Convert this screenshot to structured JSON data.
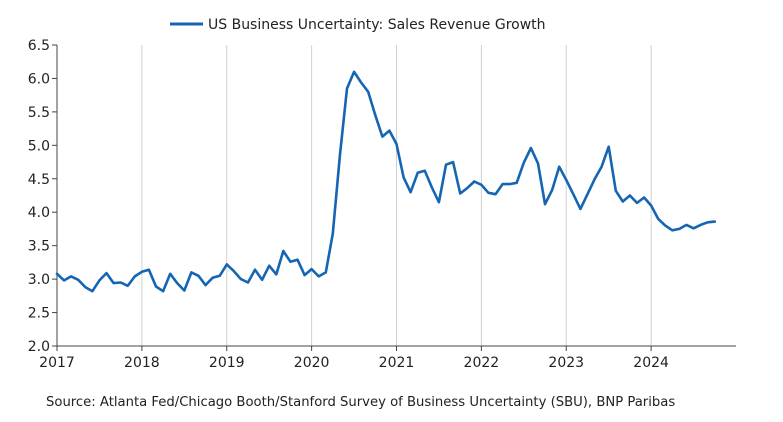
{
  "chart_data": {
    "type": "line",
    "title": "",
    "xlabel": "",
    "ylabel": "",
    "ylim": [
      2.0,
      6.5
    ],
    "yticks": [
      "2.0",
      "2.5",
      "3.0",
      "3.5",
      "4.0",
      "4.5",
      "5.0",
      "5.5",
      "6.0",
      "6.5"
    ],
    "xlim": [
      "2017-01",
      "2024-12"
    ],
    "xticks": [
      "2017",
      "2018",
      "2019",
      "2020",
      "2021",
      "2022",
      "2023",
      "2024"
    ],
    "grid": "vertical lines at year ticks",
    "legend_position": "top-center",
    "series": [
      {
        "name": "US Business Uncertainty: Sales Revenue Growth",
        "color": "#1565b3",
        "points": [
          [
            "2017-01",
            3.08
          ],
          [
            "2017-02",
            2.98
          ],
          [
            "2017-03",
            3.04
          ],
          [
            "2017-04",
            2.99
          ],
          [
            "2017-05",
            2.88
          ],
          [
            "2017-06",
            2.82
          ],
          [
            "2017-07",
            2.98
          ],
          [
            "2017-08",
            3.09
          ],
          [
            "2017-09",
            2.94
          ],
          [
            "2017-10",
            2.95
          ],
          [
            "2017-11",
            2.9
          ],
          [
            "2017-12",
            3.04
          ],
          [
            "2018-01",
            3.11
          ],
          [
            "2018-02",
            3.14
          ],
          [
            "2018-03",
            2.89
          ],
          [
            "2018-04",
            2.82
          ],
          [
            "2018-05",
            3.08
          ],
          [
            "2018-06",
            2.94
          ],
          [
            "2018-07",
            2.83
          ],
          [
            "2018-08",
            3.1
          ],
          [
            "2018-09",
            3.05
          ],
          [
            "2018-10",
            2.91
          ],
          [
            "2018-11",
            3.02
          ],
          [
            "2018-12",
            3.05
          ],
          [
            "2019-01",
            3.22
          ],
          [
            "2019-02",
            3.12
          ],
          [
            "2019-03",
            3.0
          ],
          [
            "2019-04",
            2.95
          ],
          [
            "2019-05",
            3.14
          ],
          [
            "2019-06",
            2.99
          ],
          [
            "2019-07",
            3.2
          ],
          [
            "2019-08",
            3.07
          ],
          [
            "2019-09",
            3.42
          ],
          [
            "2019-10",
            3.26
          ],
          [
            "2019-11",
            3.29
          ],
          [
            "2019-12",
            3.06
          ],
          [
            "2020-01",
            3.15
          ],
          [
            "2020-02",
            3.04
          ],
          [
            "2020-03",
            3.1
          ],
          [
            "2020-04",
            3.68
          ],
          [
            "2020-05",
            4.85
          ],
          [
            "2020-06",
            5.85
          ],
          [
            "2020-07",
            6.1
          ],
          [
            "2020-08",
            5.94
          ],
          [
            "2020-09",
            5.8
          ],
          [
            "2020-10",
            5.45
          ],
          [
            "2020-11",
            5.13
          ],
          [
            "2020-12",
            5.22
          ],
          [
            "2021-01",
            5.02
          ],
          [
            "2021-02",
            4.52
          ],
          [
            "2021-03",
            4.3
          ],
          [
            "2021-04",
            4.59
          ],
          [
            "2021-05",
            4.62
          ],
          [
            "2021-06",
            4.37
          ],
          [
            "2021-07",
            4.15
          ],
          [
            "2021-08",
            4.71
          ],
          [
            "2021-09",
            4.75
          ],
          [
            "2021-10",
            4.28
          ],
          [
            "2021-11",
            4.36
          ],
          [
            "2021-12",
            4.46
          ],
          [
            "2022-01",
            4.41
          ],
          [
            "2022-02",
            4.29
          ],
          [
            "2022-03",
            4.27
          ],
          [
            "2022-04",
            4.42
          ],
          [
            "2022-05",
            4.42
          ],
          [
            "2022-06",
            4.44
          ],
          [
            "2022-07",
            4.74
          ],
          [
            "2022-08",
            4.96
          ],
          [
            "2022-09",
            4.73
          ],
          [
            "2022-10",
            4.12
          ],
          [
            "2022-11",
            4.33
          ],
          [
            "2022-12",
            4.68
          ],
          [
            "2023-01",
            4.48
          ],
          [
            "2023-02",
            4.27
          ],
          [
            "2023-03",
            4.05
          ],
          [
            "2023-04",
            4.27
          ],
          [
            "2023-05",
            4.49
          ],
          [
            "2023-06",
            4.68
          ],
          [
            "2023-07",
            4.98
          ],
          [
            "2023-08",
            4.32
          ],
          [
            "2023-09",
            4.16
          ],
          [
            "2023-10",
            4.25
          ],
          [
            "2023-11",
            4.14
          ],
          [
            "2023-12",
            4.22
          ],
          [
            "2024-01",
            4.1
          ],
          [
            "2024-02",
            3.9
          ],
          [
            "2024-03",
            3.8
          ],
          [
            "2024-04",
            3.73
          ],
          [
            "2024-05",
            3.75
          ],
          [
            "2024-06",
            3.81
          ],
          [
            "2024-07",
            3.76
          ],
          [
            "2024-08",
            3.81
          ],
          [
            "2024-09",
            3.85
          ],
          [
            "2024-10",
            3.86
          ]
        ]
      }
    ]
  },
  "source": "Source: Atlanta Fed/Chicago Booth/Stanford Survey of Business Uncertainty (SBU), BNP Paribas"
}
